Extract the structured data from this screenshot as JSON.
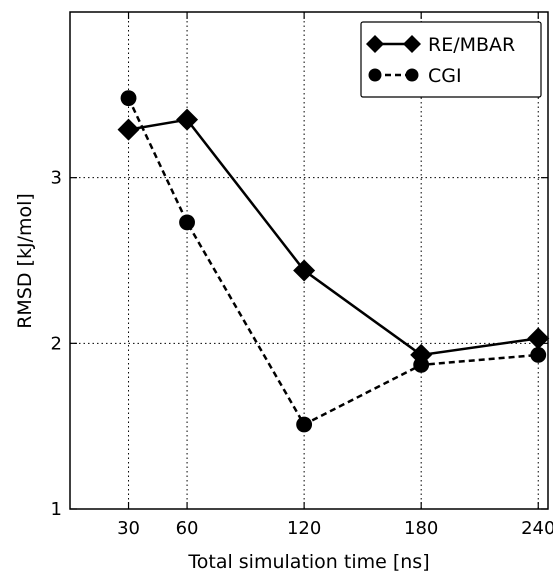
{
  "chart_data": {
    "type": "line",
    "title": "",
    "xlabel": "Total simulation time [ns]",
    "ylabel": "RMSD [kJ/mol]",
    "xlim": [
      0,
      245
    ],
    "ylim": [
      1,
      4
    ],
    "x_ticks": [
      30,
      60,
      120,
      180,
      240
    ],
    "y_ticks": [
      1,
      2,
      3
    ],
    "grid": "dotted",
    "legend_position": "top-right",
    "series": [
      {
        "name": "RE/MBAR",
        "x": [
          30,
          60,
          120,
          180,
          240
        ],
        "values": [
          3.29,
          3.35,
          2.44,
          1.93,
          2.03
        ],
        "marker": "diamond",
        "line_style": "solid",
        "color": "#000000"
      },
      {
        "name": "CGI",
        "x": [
          30,
          60,
          120,
          180,
          240
        ],
        "values": [
          3.48,
          2.73,
          1.51,
          1.87,
          1.93
        ],
        "marker": "circle",
        "line_style": "dashed",
        "color": "#000000"
      }
    ]
  }
}
